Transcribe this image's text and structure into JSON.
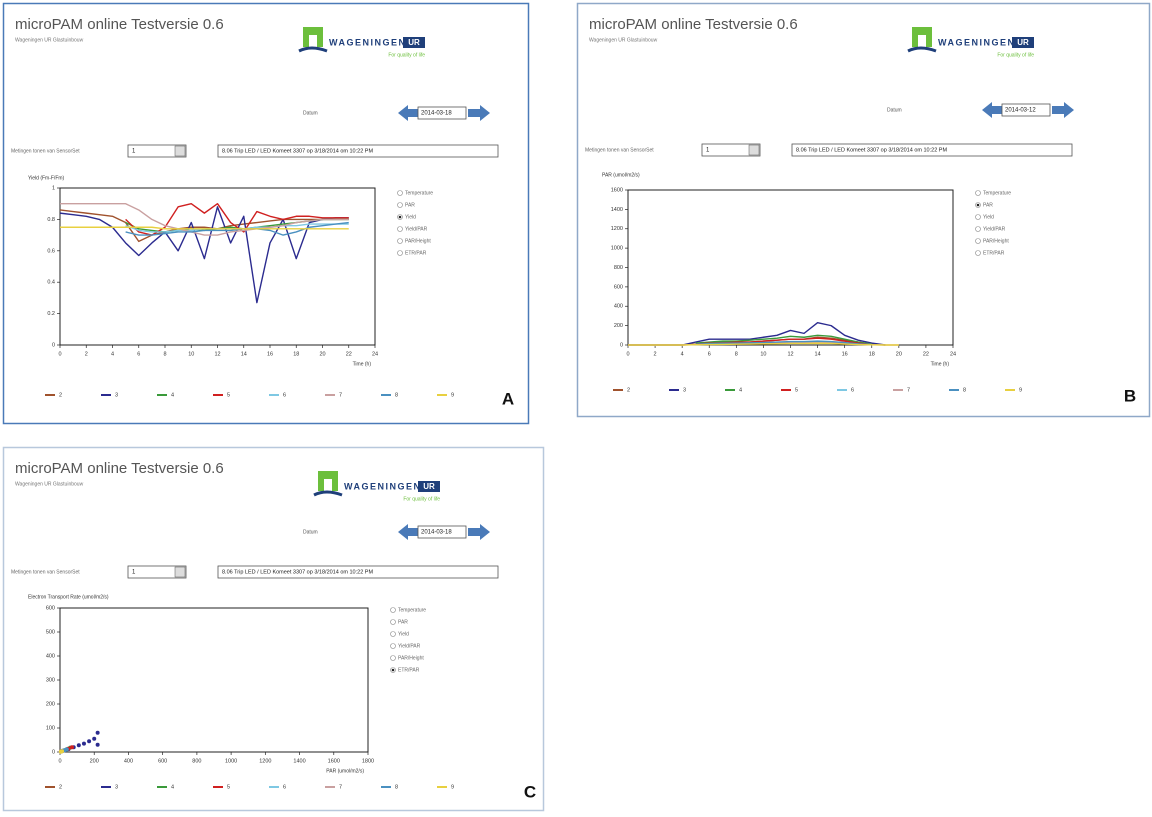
{
  "panels": [
    {
      "label": "A",
      "app_title": "microPAM online Testversie 0.6",
      "app_subtitle": "Wageningen UR Glastuinbouw",
      "logo_text": "WAGENINGEN",
      "logo_badge": "UR",
      "logo_tagline": "For quality of life",
      "date_label": "Datum",
      "date": "2014-03-18",
      "sensor_label": "Metingen tonen van SensorSet",
      "sensor_value": "1",
      "sensor_info": "8.06 Trip LED / LED Komeet 3307 op 3/18/2014 om 10:22 PM",
      "options": [
        "Temperature",
        "PAR",
        "Yield",
        "Yield/PAR",
        "PAR/Height",
        "ETR/PAR"
      ],
      "selected_option": 2
    },
    {
      "label": "B",
      "app_title": "microPAM online Testversie 0.6",
      "app_subtitle": "Wageningen UR Glastuinbouw",
      "logo_text": "WAGENINGEN",
      "logo_badge": "UR",
      "logo_tagline": "For quality of life",
      "date_label": "Datum",
      "date": "2014-03-12",
      "sensor_label": "Metingen tonen van SensorSet",
      "sensor_value": "1",
      "sensor_info": "8.06 Trip LED / LED Komeet 3307 op 3/18/2014 om 10:22 PM",
      "options": [
        "Temperature",
        "PAR",
        "Yield",
        "Yield/PAR",
        "PAR/Height",
        "ETR/PAR"
      ],
      "selected_option": 1
    },
    {
      "label": "C",
      "app_title": "microPAM online Testversie 0.6",
      "app_subtitle": "Wageningen UR Glastuinbouw",
      "logo_text": "WAGENINGEN",
      "logo_badge": "UR",
      "logo_tagline": "For quality of life",
      "date_label": "Datum",
      "date": "2014-03-18",
      "sensor_label": "Metingen tonen van SensorSet",
      "sensor_value": "1",
      "sensor_info": "8.06 Trip LED / LED Komeet 3307 op 3/18/2014 om 10:22 PM",
      "options": [
        "Temperature",
        "PAR",
        "Yield",
        "Yield/PAR",
        "PAR/Height",
        "ETR/PAR"
      ],
      "selected_option": 5
    }
  ],
  "chart_data": [
    {
      "type": "line",
      "ylabel": "Yield (Fm-F/Fm)",
      "xlabel": "Time (h)",
      "x": [
        0,
        1,
        2,
        3,
        4,
        5,
        6,
        7,
        8,
        9,
        10,
        11,
        12,
        13,
        14,
        15,
        16,
        17,
        18,
        19,
        20,
        21,
        22
      ],
      "xlim": [
        0,
        24
      ],
      "ylim": [
        0,
        1
      ],
      "xticks": [
        0,
        2,
        4,
        6,
        8,
        10,
        12,
        14,
        16,
        18,
        20,
        22,
        24
      ],
      "yticks": [
        0,
        0.2,
        0.4,
        0.6,
        0.8,
        1
      ],
      "series": [
        {
          "name": "2",
          "color": "#a0522d",
          "values": [
            0.86,
            0.85,
            0.84,
            0.83,
            0.82,
            0.78,
            0.66,
            0.7,
            0.72,
            0.74,
            0.75,
            0.75,
            0.74,
            0.76,
            0.77,
            0.78,
            0.79,
            0.8,
            0.8,
            0.8,
            0.8,
            0.8,
            0.8
          ]
        },
        {
          "name": "3",
          "color": "#2b2b8f",
          "values": [
            0.84,
            0.83,
            0.82,
            0.8,
            0.75,
            0.65,
            0.57,
            0.65,
            0.72,
            0.6,
            0.78,
            0.55,
            0.88,
            0.65,
            0.82,
            0.27,
            0.65,
            0.8,
            0.55,
            0.78,
            0.8,
            0.81,
            0.81
          ]
        },
        {
          "name": "4",
          "color": "#3a9a3a",
          "values": [
            null,
            null,
            null,
            null,
            null,
            0.78,
            0.74,
            0.73,
            0.72,
            0.73,
            0.74,
            0.73,
            0.74,
            0.75,
            0.74,
            0.75,
            0.76,
            0.77,
            0.78,
            0.79,
            0.8,
            0.8,
            0.8
          ]
        },
        {
          "name": "5",
          "color": "#d02020",
          "values": [
            null,
            null,
            null,
            null,
            null,
            0.8,
            0.72,
            0.7,
            0.75,
            0.88,
            0.9,
            0.84,
            0.9,
            0.78,
            0.72,
            0.85,
            0.82,
            0.8,
            0.82,
            0.82,
            0.81,
            0.81,
            0.81
          ]
        },
        {
          "name": "6",
          "color": "#7ec8e3",
          "values": [
            null,
            null,
            null,
            null,
            null,
            0.76,
            0.73,
            0.72,
            0.72,
            0.73,
            0.73,
            0.74,
            0.74,
            0.74,
            0.74,
            0.75,
            0.75,
            0.76,
            0.76,
            0.77,
            0.77,
            0.77,
            0.77
          ]
        },
        {
          "name": "7",
          "color": "#c9a0a0",
          "values": [
            0.9,
            0.9,
            0.9,
            0.9,
            0.9,
            0.9,
            0.86,
            0.8,
            0.76,
            0.74,
            0.72,
            0.7,
            0.7,
            0.72,
            0.73,
            0.74,
            0.75,
            0.76,
            0.78,
            0.79,
            0.8,
            0.8,
            0.8
          ]
        },
        {
          "name": "8",
          "color": "#4a90c0",
          "values": [
            null,
            null,
            null,
            null,
            null,
            0.72,
            0.7,
            0.7,
            0.71,
            0.72,
            0.72,
            0.73,
            0.73,
            0.73,
            0.74,
            0.74,
            0.73,
            0.7,
            0.72,
            0.75,
            0.76,
            0.77,
            0.78
          ]
        },
        {
          "name": "9",
          "color": "#e8d040",
          "values": [
            0.75,
            0.75,
            0.75,
            0.75,
            0.75,
            0.75,
            0.75,
            0.75,
            0.74,
            0.74,
            0.74,
            0.74,
            0.74,
            0.74,
            0.74,
            0.74,
            0.74,
            0.74,
            0.74,
            0.74,
            0.74,
            0.74,
            0.74
          ]
        }
      ]
    },
    {
      "type": "line",
      "ylabel": "PAR (umol/m2/s)",
      "xlabel": "Time (h)",
      "x": [
        0,
        1,
        2,
        3,
        4,
        5,
        6,
        7,
        8,
        9,
        10,
        11,
        12,
        13,
        14,
        15,
        16,
        17,
        18,
        19,
        20
      ],
      "xlim": [
        0,
        24
      ],
      "ylim": [
        0,
        1600
      ],
      "xticks": [
        0,
        2,
        4,
        6,
        8,
        10,
        12,
        14,
        16,
        18,
        20,
        22,
        24
      ],
      "yticks": [
        0,
        200,
        400,
        600,
        800,
        1000,
        1200,
        1400,
        1600
      ],
      "series": [
        {
          "name": "2",
          "color": "#a0522d",
          "values": [
            0,
            0,
            0,
            0,
            0,
            10,
            20,
            30,
            30,
            30,
            40,
            50,
            60,
            60,
            80,
            70,
            50,
            30,
            10,
            0,
            null
          ]
        },
        {
          "name": "3",
          "color": "#2b2b8f",
          "values": [
            0,
            0,
            0,
            0,
            0,
            30,
            60,
            60,
            60,
            60,
            80,
            100,
            150,
            120,
            230,
            200,
            100,
            50,
            20,
            0,
            null
          ]
        },
        {
          "name": "4",
          "color": "#3a9a3a",
          "values": [
            null,
            null,
            null,
            null,
            null,
            20,
            30,
            40,
            40,
            50,
            60,
            70,
            90,
            80,
            100,
            90,
            60,
            30,
            10,
            null,
            null
          ]
        },
        {
          "name": "5",
          "color": "#d02020",
          "values": [
            null,
            null,
            null,
            null,
            null,
            10,
            20,
            20,
            30,
            30,
            40,
            50,
            60,
            60,
            70,
            60,
            40,
            20,
            5,
            null,
            null
          ]
        },
        {
          "name": "6",
          "color": "#7ec8e3",
          "values": [
            null,
            null,
            null,
            null,
            null,
            5,
            10,
            10,
            15,
            15,
            20,
            25,
            30,
            30,
            35,
            30,
            20,
            10,
            5,
            null,
            null
          ]
        },
        {
          "name": "7",
          "color": "#c9a0a0",
          "values": [
            0,
            0,
            0,
            0,
            0,
            5,
            8,
            10,
            12,
            15,
            18,
            20,
            25,
            25,
            30,
            25,
            15,
            8,
            3,
            0,
            0
          ]
        },
        {
          "name": "8",
          "color": "#4a90c0",
          "values": [
            null,
            null,
            null,
            null,
            null,
            8,
            15,
            18,
            20,
            22,
            25,
            30,
            35,
            35,
            40,
            35,
            25,
            12,
            4,
            null,
            null
          ]
        },
        {
          "name": "9",
          "color": "#e8d040",
          "values": [
            0,
            0,
            0,
            0,
            0,
            3,
            5,
            6,
            8,
            10,
            12,
            14,
            16,
            16,
            18,
            16,
            10,
            5,
            2,
            0,
            0
          ]
        }
      ]
    },
    {
      "type": "scatter",
      "ylabel": "Electron Transport Rate (umol/m2/s)",
      "xlabel": "PAR (umol/m2/s)",
      "xlim": [
        0,
        1800
      ],
      "ylim": [
        0,
        600
      ],
      "xticks": [
        0,
        200,
        400,
        600,
        800,
        1000,
        1200,
        1400,
        1600,
        1800
      ],
      "yticks": [
        0,
        100,
        200,
        300,
        400,
        500,
        600
      ],
      "series": [
        {
          "name": "2",
          "color": "#a0522d",
          "x": [
            5,
            15,
            25
          ],
          "values": [
            2,
            5,
            8
          ]
        },
        {
          "name": "3",
          "color": "#2b2b8f",
          "x": [
            20,
            50,
            80,
            110,
            140,
            170,
            200,
            220,
            220
          ],
          "values": [
            5,
            12,
            20,
            28,
            35,
            45,
            55,
            80,
            30
          ]
        },
        {
          "name": "4",
          "color": "#3a9a3a",
          "x": [
            20,
            40,
            60
          ],
          "values": [
            6,
            12,
            18
          ]
        },
        {
          "name": "5",
          "color": "#d02020",
          "x": [
            10,
            30,
            50,
            70
          ],
          "values": [
            3,
            8,
            14,
            20
          ]
        },
        {
          "name": "6",
          "color": "#7ec8e3",
          "x": [
            10,
            20,
            30
          ],
          "values": [
            3,
            6,
            9
          ]
        },
        {
          "name": "7",
          "color": "#c9a0a0",
          "x": [
            8,
            18
          ],
          "values": [
            2,
            5
          ]
        },
        {
          "name": "8",
          "color": "#4a90c0",
          "x": [
            15,
            30,
            40
          ],
          "values": [
            4,
            8,
            11
          ]
        },
        {
          "name": "9",
          "color": "#e8d040",
          "x": [
            5,
            12
          ],
          "values": [
            1,
            3
          ]
        }
      ]
    }
  ]
}
